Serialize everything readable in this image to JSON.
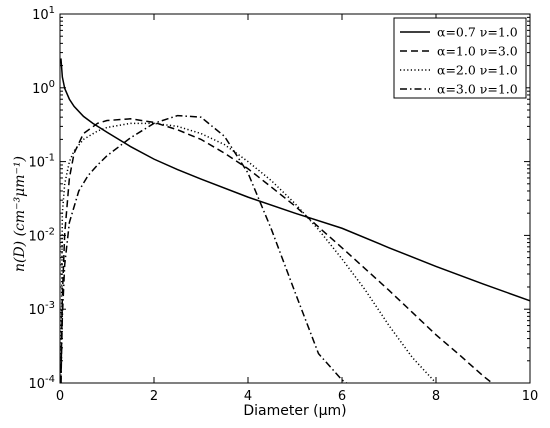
{
  "chart_data": {
    "type": "line",
    "xlabel": "Diameter (μm)",
    "ylabel": "n(D) (cm⁻³μm⁻¹)",
    "xlim": [
      0,
      10
    ],
    "ylim": [
      0.0001,
      10
    ],
    "y_scale": "log",
    "grid": false,
    "legend_position": "top-right",
    "x_ticks": [
      0,
      2,
      4,
      6,
      8,
      10
    ],
    "y_ticks": [
      {
        "exp": -4,
        "label": "10-4"
      },
      {
        "exp": -3,
        "label": "10-3"
      },
      {
        "exp": -2,
        "label": "10-2"
      },
      {
        "exp": -1,
        "label": "10-1"
      },
      {
        "exp": 0,
        "label": "100"
      },
      {
        "exp": 1,
        "label": "101"
      }
    ],
    "series": [
      {
        "name": "α=0.7 ν=1.0",
        "style": "solid",
        "x": [
          0.02,
          0.05,
          0.1,
          0.2,
          0.3,
          0.5,
          0.7,
          1,
          1.5,
          2,
          2.5,
          3,
          4,
          5,
          6,
          7,
          8,
          9,
          10
        ],
        "y": [
          2.5,
          1.4,
          0.98,
          0.7,
          0.56,
          0.41,
          0.33,
          0.25,
          0.16,
          0.108,
          0.078,
          0.058,
          0.033,
          0.02,
          0.0125,
          0.0068,
          0.0038,
          0.0022,
          0.0013
        ]
      },
      {
        "name": "α=1.0 ν=3.0",
        "style": "dashed",
        "x": [
          0.02,
          0.05,
          0.1,
          0.2,
          0.3,
          0.5,
          0.8,
          1,
          1.5,
          2,
          2.5,
          3,
          3.5,
          4,
          4.5,
          5,
          5.5,
          6,
          6.5,
          7,
          7.5,
          8,
          8.5,
          9,
          9.5,
          10
        ],
        "y": [
          0.0001,
          0.0015,
          0.0105,
          0.06,
          0.13,
          0.24,
          0.33,
          0.36,
          0.38,
          0.34,
          0.27,
          0.2,
          0.13,
          0.08,
          0.045,
          0.025,
          0.013,
          0.0068,
          0.0035,
          0.0018,
          0.0009,
          0.00045,
          0.00024,
          0.000125,
          7e-05,
          0.0001
        ]
      },
      {
        "name": "α=2.0 ν=1.0",
        "style": "dotted",
        "x": [
          0.02,
          0.05,
          0.1,
          0.2,
          0.3,
          0.5,
          0.8,
          1,
          1.5,
          2,
          2.5,
          3,
          3.5,
          4,
          4.5,
          5,
          5.5,
          6,
          6.5,
          7,
          7.5,
          8
        ],
        "y": [
          0.0001,
          0.02,
          0.05,
          0.1,
          0.14,
          0.2,
          0.26,
          0.29,
          0.33,
          0.33,
          0.3,
          0.24,
          0.17,
          0.1,
          0.055,
          0.027,
          0.012,
          0.0048,
          0.0018,
          0.0006,
          0.00022,
          0.0001
        ]
      },
      {
        "name": "α=3.0 ν=1.0",
        "style": "dashdot",
        "x": [
          0.02,
          0.05,
          0.1,
          0.2,
          0.4,
          0.6,
          0.8,
          1,
          1.5,
          2,
          2.5,
          3,
          3.5,
          4,
          4.5,
          5,
          5.5,
          6,
          6.1
        ],
        "y": [
          0.0001,
          0.0008,
          0.004,
          0.015,
          0.04,
          0.065,
          0.09,
          0.12,
          0.21,
          0.33,
          0.42,
          0.4,
          0.22,
          0.07,
          0.012,
          0.0017,
          0.00025,
          0.00011,
          0.0001
        ]
      }
    ]
  }
}
